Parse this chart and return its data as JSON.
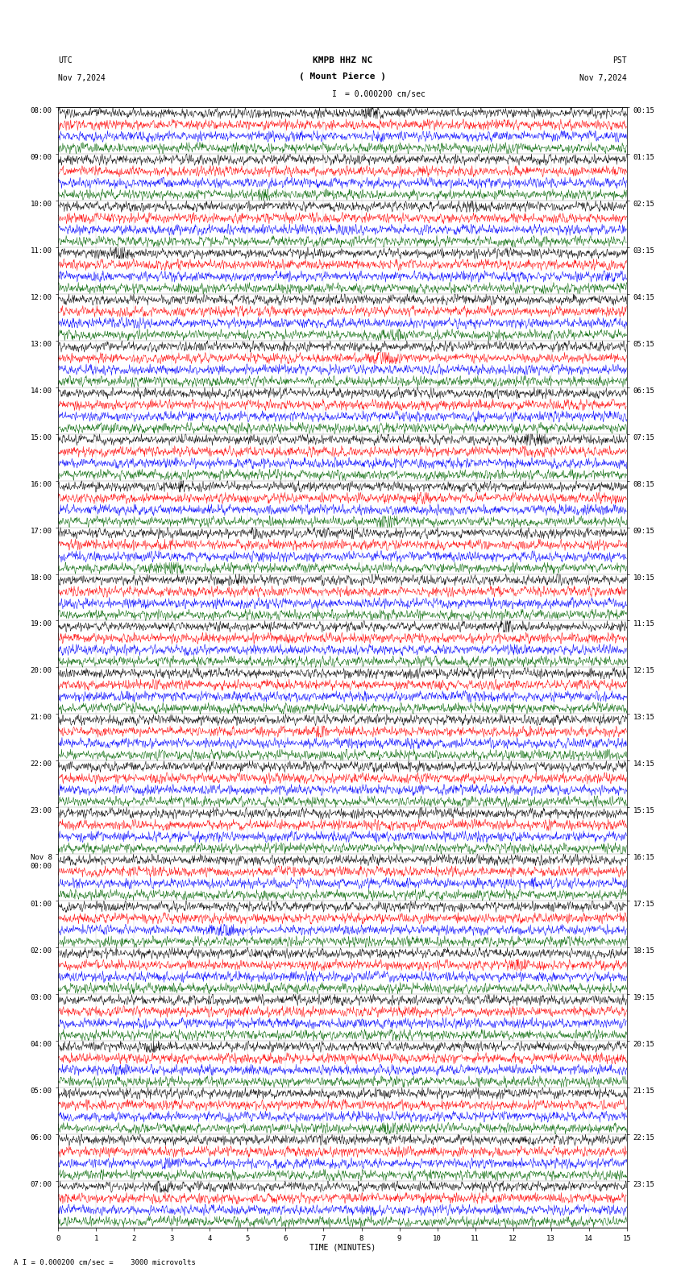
{
  "title_line1": "KMPB HHZ NC",
  "title_line2": "( Mount Pierce )",
  "scale_text": "= 0.000200 cm/sec",
  "footer_text": "= 0.000200 cm/sec =    3000 microvolts",
  "utc_label": "UTC",
  "date_left": "Nov 7,2024",
  "date_right": "Nov 7,2024",
  "pst_label": "PST",
  "xlabel": "TIME (MINUTES)",
  "bg_color": "#ffffff",
  "trace_colors": [
    "#000000",
    "#ff0000",
    "#0000ff",
    "#006400"
  ],
  "left_times_utc": [
    "08:00",
    "09:00",
    "10:00",
    "11:00",
    "12:00",
    "13:00",
    "14:00",
    "15:00",
    "16:00",
    "17:00",
    "18:00",
    "19:00",
    "20:00",
    "21:00",
    "22:00",
    "23:00",
    "Nov 8\n00:00",
    "01:00",
    "02:00",
    "03:00",
    "04:00",
    "05:00",
    "06:00",
    "07:00"
  ],
  "right_times_pst": [
    "00:15",
    "01:15",
    "02:15",
    "03:15",
    "04:15",
    "05:15",
    "06:15",
    "07:15",
    "08:15",
    "09:15",
    "10:15",
    "11:15",
    "12:15",
    "13:15",
    "14:15",
    "15:15",
    "16:15",
    "17:15",
    "18:15",
    "19:15",
    "20:15",
    "21:15",
    "22:15",
    "23:15"
  ],
  "num_rows": 24,
  "traces_per_row": 4,
  "minutes_per_row": 15,
  "samples_per_minute": 100,
  "xmin": 0,
  "xmax": 15,
  "font_size_title": 8,
  "font_size_labels": 7,
  "font_size_ticks": 6.5,
  "font_size_footer": 6.5
}
